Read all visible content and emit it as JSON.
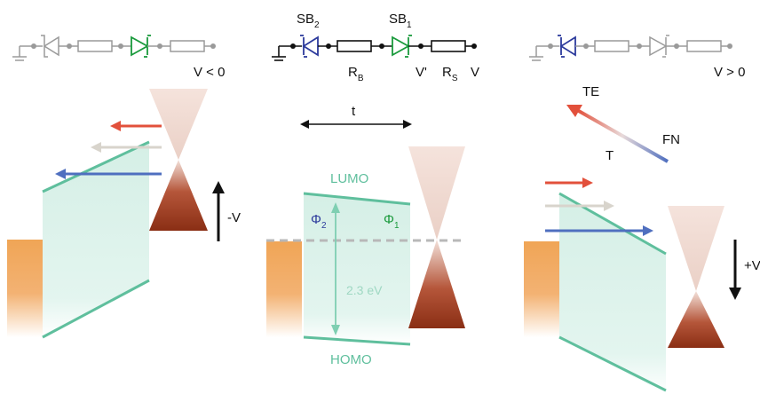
{
  "colors": {
    "green_diode": "#1a9a3c",
    "blue_diode": "#2c3a9c",
    "gray_element": "#9a9a9a",
    "black_element": "#111111",
    "orange_metal": "#f0a556",
    "mint_fill": "#d4eee6",
    "mint_line": "#5fbf9d",
    "red_arrow": "#e2503b",
    "light_arrow": "#d8d4cc",
    "blue_arrow": "#4f6fbf",
    "cone_light": "#f3e1db",
    "cone_dark": "#9c3a1e",
    "dashed_fermi": "#b8b8b8",
    "bandgap_text": "#9fd8c3"
  },
  "left_panel": {
    "voltage": "V < 0",
    "field_label": "-V"
  },
  "center_panel": {
    "sb2": {
      "main": "SB",
      "sub": "2"
    },
    "sb1": {
      "main": "SB",
      "sub": "1"
    },
    "rb": {
      "main": "R",
      "sub": "B"
    },
    "rs": {
      "main": "R",
      "sub": "S"
    },
    "v_prime": "V'",
    "v": "V",
    "t": "t",
    "lumo": "LUMO",
    "homo": "HOMO",
    "phi2": {
      "main": "Φ",
      "sub": "2"
    },
    "phi1": {
      "main": "Φ",
      "sub": "1"
    },
    "bandgap": "2.3 eV"
  },
  "right_panel": {
    "voltage": "V > 0",
    "field_label": "+V",
    "te": "TE",
    "t": "T",
    "fn": "FN"
  }
}
